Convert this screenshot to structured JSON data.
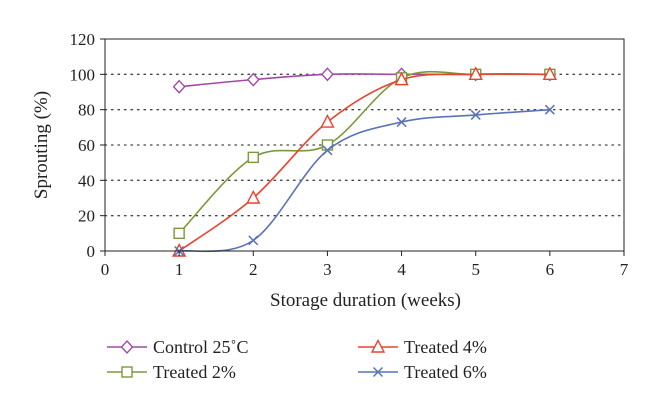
{
  "chart_data": {
    "type": "line",
    "xlabel": "Storage duration (weeks)",
    "ylabel": "Sprouting (%)",
    "xlim": [
      0,
      7
    ],
    "ylim": [
      0,
      120
    ],
    "x_ticks": [
      0,
      1,
      2,
      3,
      4,
      5,
      6,
      7
    ],
    "y_ticks": [
      0,
      20,
      40,
      60,
      80,
      100,
      120
    ],
    "grid": "horizontal dotted",
    "legend_position": "bottom",
    "x": [
      1,
      2,
      3,
      4,
      5,
      6
    ],
    "series": [
      {
        "name": "Control 25˚C",
        "values": [
          93,
          97,
          100,
          100,
          100,
          100
        ],
        "color": "#a04aa6",
        "marker": "diamond"
      },
      {
        "name": "Treated 2%",
        "values": [
          10,
          53,
          60,
          98,
          100,
          100
        ],
        "color": "#7a9a3a",
        "marker": "square"
      },
      {
        "name": "Treated 4%",
        "values": [
          0,
          30,
          73,
          97,
          100,
          100
        ],
        "color": "#e8432d",
        "marker": "triangle"
      },
      {
        "name": "Treated 6%",
        "values": [
          0,
          6,
          57,
          73,
          77,
          80
        ],
        "color": "#5a72b8",
        "marker": "x"
      }
    ]
  }
}
